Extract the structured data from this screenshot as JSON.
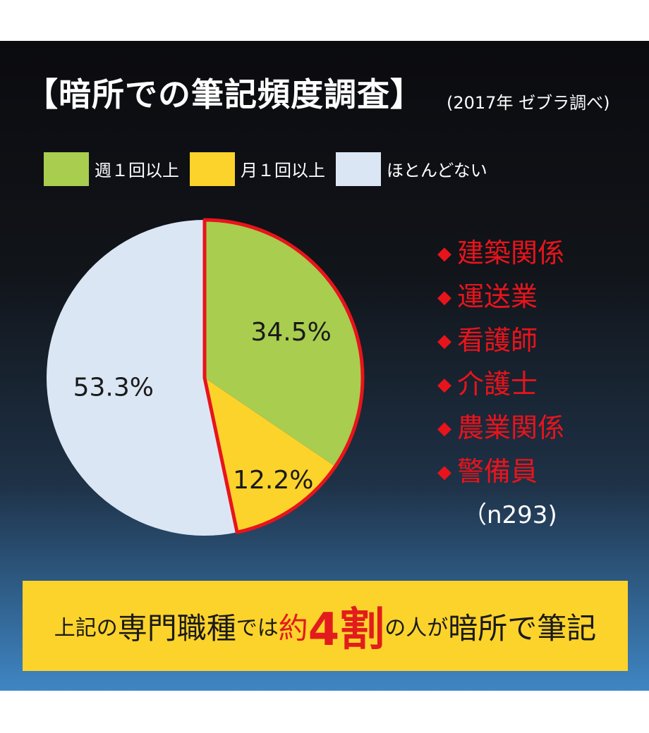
{
  "header": {
    "title": "【暗所での筆記頻度調査】",
    "source": "(2017年 ゼブラ調べ)"
  },
  "legend": [
    {
      "label": "週１回以上",
      "color": "#a9cd4f"
    },
    {
      "label": "月１回以上",
      "color": "#fcd32b"
    },
    {
      "label": "ほとんどない",
      "color": "#dbe6f5"
    }
  ],
  "chart_data": {
    "type": "pie",
    "title": "【暗所での筆記頻度調査】",
    "slices": [
      {
        "label": "週１回以上",
        "value": 34.5,
        "text": "34.5%",
        "color": "#a9cd4f"
      },
      {
        "label": "月１回以上",
        "value": 12.2,
        "text": "12.2%",
        "color": "#fcd32b"
      },
      {
        "label": "ほとんどない",
        "value": 53.3,
        "text": "53.3%",
        "color": "#dbe6f5"
      }
    ],
    "highlight": {
      "slices": [
        "週１回以上",
        "月１回以上"
      ],
      "outline_color": "#e8141c"
    },
    "legend_position": "top"
  },
  "jobs": {
    "bullet": "◆",
    "items": [
      "建築関係",
      "運送業",
      "看護師",
      "介護士",
      "農業関係",
      "警備員"
    ],
    "sample": "（n293)"
  },
  "banner": {
    "part1": "上記の",
    "part2": "専門職種",
    "part3": "では",
    "part4": "約",
    "part5": "4割",
    "part6": "の人が",
    "part7": "暗所で筆記"
  }
}
